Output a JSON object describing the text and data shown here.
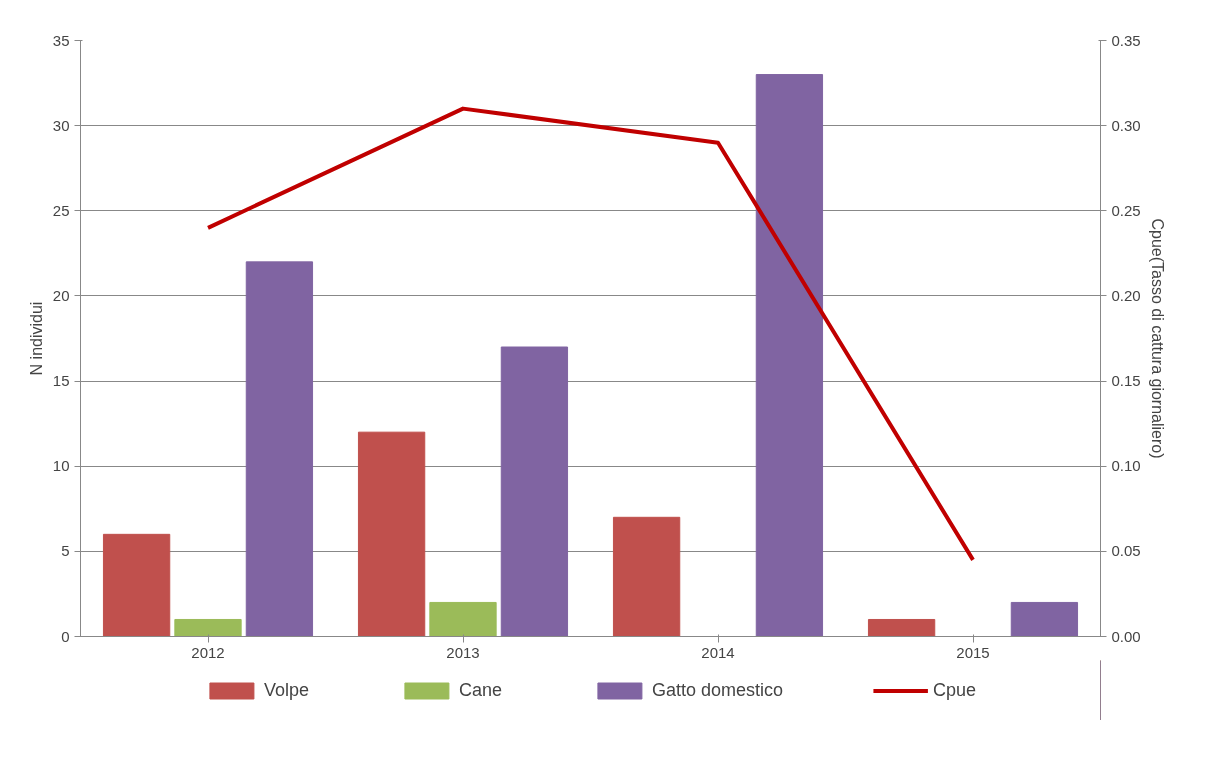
{
  "chart_data": {
    "type": "bar",
    "categories": [
      "2012",
      "2013",
      "2014",
      "2015"
    ],
    "ylabel": "N individui",
    "y2label": "Cpue(Tasso di cattura giornaliero)",
    "ylim": [
      0,
      35
    ],
    "yticks": [
      0,
      5,
      10,
      15,
      20,
      25,
      30,
      35
    ],
    "y2lim": [
      0,
      0.35
    ],
    "y2ticks": [
      {
        "value": 0,
        "label": "0.00"
      },
      {
        "value": 0.05,
        "label": "0.05"
      },
      {
        "value": 0.1,
        "label": "0.10"
      },
      {
        "value": 0.15,
        "label": "0.15"
      },
      {
        "value": 0.2,
        "label": "0.20"
      },
      {
        "value": 0.25,
        "label": "0.25"
      },
      {
        "value": 0.3,
        "label": "0.30"
      },
      {
        "value": 0.35,
        "label": "0.35"
      }
    ],
    "grid": "y",
    "legend": "bottom",
    "series": [
      {
        "name": "Volpe",
        "color": "#c0504d",
        "values": [
          6,
          12,
          7,
          1
        ]
      },
      {
        "name": "Cane",
        "color": "#9bbb59",
        "values": [
          1,
          2,
          0,
          0
        ]
      },
      {
        "name": "Gatto domestico",
        "color": "#8064a2",
        "values": [
          22,
          17,
          33,
          2
        ]
      },
      {
        "name": "Cpue",
        "type": "line",
        "axis": "y2",
        "color": "#c00000",
        "values": [
          0.24,
          0.31,
          0.29,
          0.045
        ]
      }
    ]
  }
}
